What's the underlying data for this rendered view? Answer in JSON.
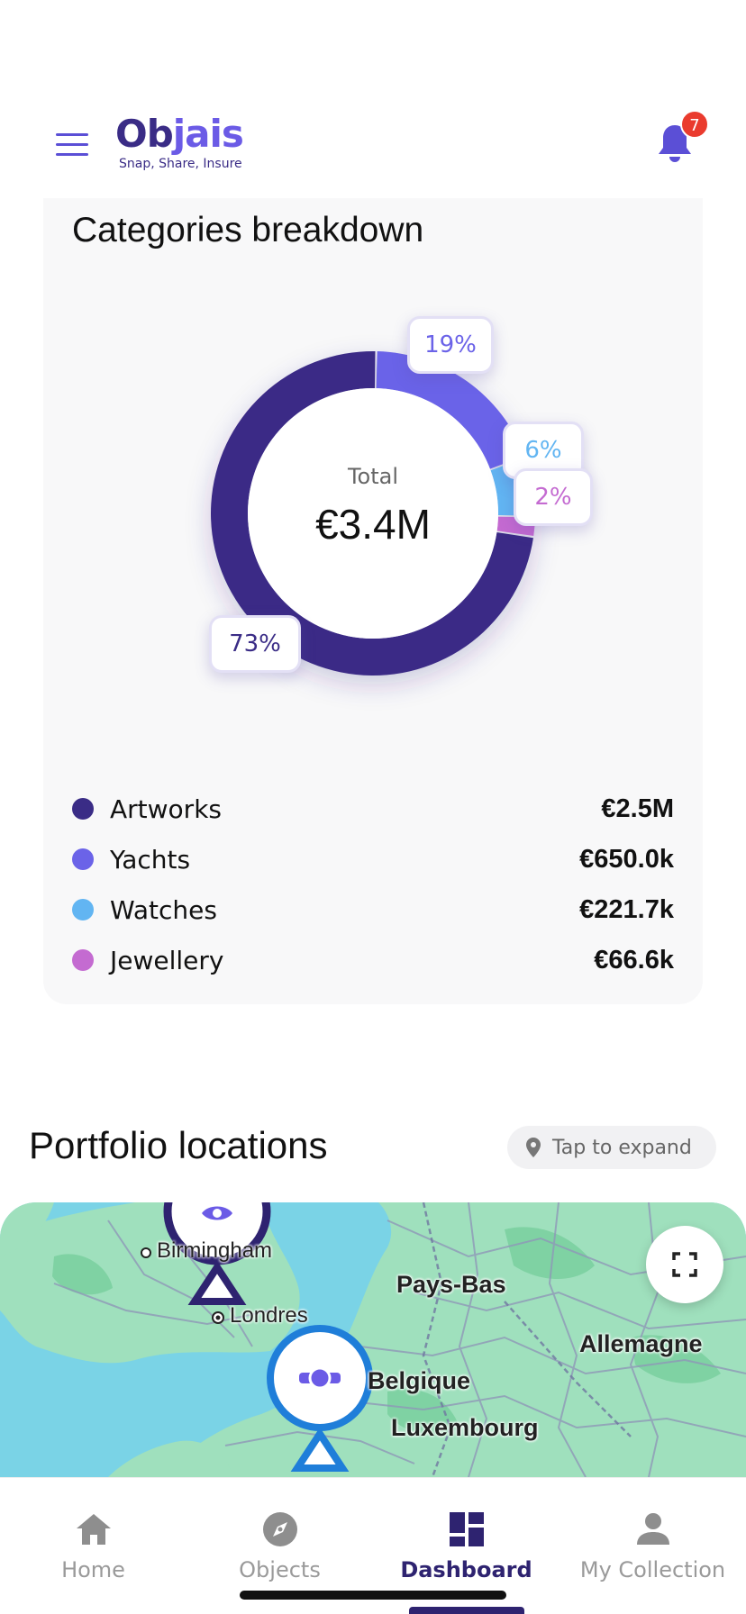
{
  "header": {
    "logo_main": "Objais",
    "logo_tagline": "Snap, Share, Insure",
    "notification_count": "7",
    "icons": {
      "menu": "hamburger-menu-icon",
      "notifications": "bell-icon"
    },
    "brand_color": "#5b4fd6"
  },
  "categories": {
    "title": "Categories breakdown",
    "total_label": "Total",
    "total_value": "€3.4M",
    "items": [
      {
        "name": "Artworks",
        "value": "€2.5M",
        "percent_label": "73%",
        "color": "#3a2c86"
      },
      {
        "name": "Yachts",
        "value": "€650.0k",
        "percent_label": "19%",
        "color": "#6b63e8"
      },
      {
        "name": "Watches",
        "value": "€221.7k",
        "percent_label": "6%",
        "color": "#62b5f2"
      },
      {
        "name": "Jewellery",
        "value": "€66.6k",
        "percent_label": "2%",
        "color": "#c46bd1"
      }
    ]
  },
  "chart_data": {
    "type": "pie",
    "categories": [
      "Artworks",
      "Yachts",
      "Watches",
      "Jewellery"
    ],
    "values": [
      73,
      19,
      6,
      2
    ],
    "center_label": "Total",
    "center_value": "€3.4M",
    "colors": [
      "#3a2c86",
      "#6b63e8",
      "#62b5f2",
      "#c46bd1"
    ]
  },
  "portfolio": {
    "title": "Portfolio locations",
    "expand_label": "Tap to expand",
    "icons": {
      "expand": "location-pin-icon",
      "fullscreen": "fullscreen-icon"
    },
    "map_labels": {
      "birmingham": "Birmingham",
      "londres": "Londres",
      "pays_bas": "Pays-Bas",
      "allemagne": "Allemagne",
      "belgique": "Belgique",
      "luxembourg": "Luxembourg"
    },
    "markers": [
      {
        "name": "artwork-marker",
        "icon": "eye-icon"
      },
      {
        "name": "watch-marker",
        "icon": "watch-icon"
      }
    ]
  },
  "bottom_nav": {
    "items": [
      {
        "label": "Home",
        "icon": "home-icon"
      },
      {
        "label": "Objects",
        "icon": "compass-icon"
      },
      {
        "label": "Dashboard",
        "icon": "dashboard-icon",
        "active": true
      },
      {
        "label": "My Collection",
        "icon": "person-icon"
      }
    ],
    "active_color": "#2e2370"
  }
}
